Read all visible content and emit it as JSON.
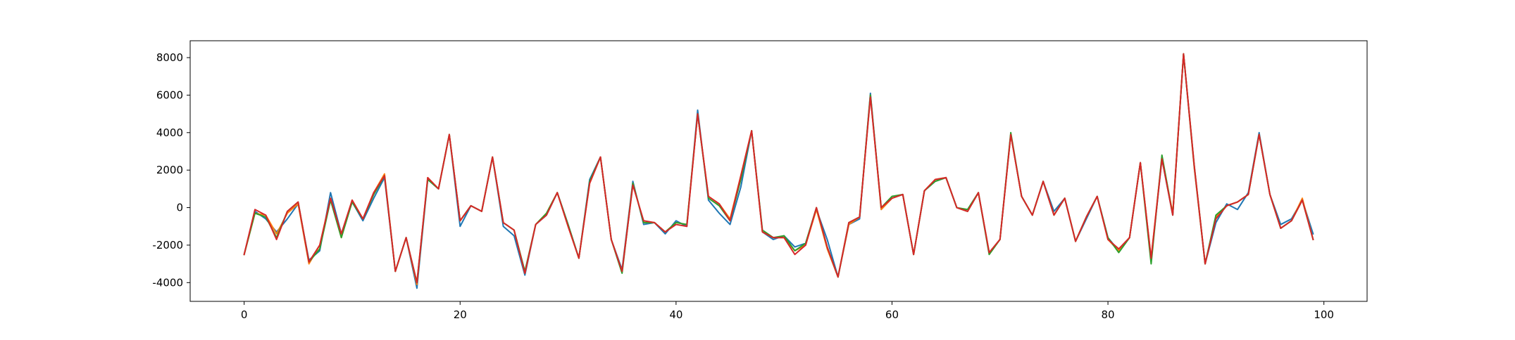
{
  "chart_data": {
    "type": "line",
    "title": "",
    "xlabel": "",
    "ylabel": "",
    "xlim": [
      -5,
      104
    ],
    "ylim": [
      -5000,
      8900
    ],
    "xticks": [
      0,
      20,
      40,
      60,
      80,
      100
    ],
    "yticks": [
      -4000,
      -2000,
      0,
      2000,
      4000,
      6000,
      8000
    ],
    "grid": false,
    "x": [
      0,
      1,
      2,
      3,
      4,
      5,
      6,
      7,
      8,
      9,
      10,
      11,
      12,
      13,
      14,
      15,
      16,
      17,
      18,
      19,
      20,
      21,
      22,
      23,
      24,
      25,
      26,
      27,
      28,
      29,
      30,
      31,
      32,
      33,
      34,
      35,
      36,
      37,
      38,
      39,
      40,
      41,
      42,
      43,
      44,
      45,
      46,
      47,
      48,
      49,
      50,
      51,
      52,
      53,
      54,
      55,
      56,
      57,
      58,
      59,
      60,
      61,
      62,
      63,
      64,
      65,
      66,
      67,
      68,
      69,
      70,
      71,
      72,
      73,
      74,
      75,
      76,
      77,
      78,
      79,
      80,
      81,
      82,
      83,
      84,
      85,
      86,
      87,
      88,
      89,
      90,
      91,
      92,
      93,
      94,
      95,
      96,
      97,
      98,
      99
    ],
    "series": [
      {
        "color": "#1f77b4",
        "values": [
          -2500,
          -200,
          -600,
          -1300,
          -600,
          200,
          -2800,
          -2300,
          800,
          -1400,
          300,
          -700,
          500,
          1600,
          -3400,
          -1600,
          -4300,
          1500,
          1000,
          3900,
          -1000,
          100,
          -200,
          2700,
          -1000,
          -1500,
          -3600,
          -900,
          -400,
          800,
          -900,
          -2700,
          1500,
          2700,
          -1700,
          -3300,
          1400,
          -900,
          -800,
          -1400,
          -700,
          -1000,
          5200,
          400,
          -300,
          -900,
          1100,
          4100,
          -1300,
          -1700,
          -1500,
          -2100,
          -1900,
          -100,
          -1700,
          -3700,
          -900,
          -600,
          6100,
          -100,
          500,
          700,
          -2500,
          900,
          1400,
          1600,
          0,
          -200,
          800,
          -2400,
          -1700,
          3900,
          600,
          -400,
          1400,
          -200,
          500,
          -1800,
          -600,
          600,
          -1600,
          -2300,
          -1600,
          2400,
          -2800,
          2600,
          -400,
          8200,
          2100,
          -3000,
          -800,
          200,
          -100,
          800,
          4000,
          700,
          -900,
          -600,
          400,
          -1400
        ]
      },
      {
        "color": "#ff7f0e",
        "values": [
          -2500,
          -300,
          -400,
          -1400,
          -300,
          200,
          -3000,
          -2000,
          500,
          -1600,
          400,
          -600,
          800,
          1800,
          -3400,
          -1600,
          -4100,
          1600,
          1000,
          3900,
          -700,
          100,
          -200,
          2700,
          -800,
          -1200,
          -3500,
          -900,
          -300,
          800,
          -1000,
          -2700,
          1300,
          2700,
          -1700,
          -3400,
          1300,
          -800,
          -800,
          -1300,
          -800,
          -900,
          5000,
          600,
          200,
          -600,
          1700,
          4100,
          -1300,
          -1600,
          -1600,
          -2300,
          -2000,
          -100,
          -2200,
          -3700,
          -900,
          -500,
          6000,
          -100,
          500,
          700,
          -2500,
          900,
          1500,
          1600,
          0,
          -200,
          800,
          -2400,
          -1700,
          3900,
          600,
          -400,
          1400,
          -400,
          500,
          -1800,
          -500,
          600,
          -1700,
          -2300,
          -1600,
          2400,
          -2700,
          2700,
          -300,
          8200,
          2100,
          -3000,
          -500,
          100,
          300,
          700,
          3900,
          700,
          -1100,
          -700,
          500,
          -1700
        ]
      },
      {
        "color": "#2ca02c",
        "values": [
          -2500,
          -300,
          -500,
          -1600,
          -200,
          300,
          -2900,
          -2200,
          400,
          -1600,
          300,
          -600,
          700,
          1700,
          -3400,
          -1600,
          -4000,
          1500,
          1000,
          3900,
          -700,
          100,
          -200,
          2700,
          -800,
          -1200,
          -3400,
          -900,
          -300,
          800,
          -900,
          -2700,
          1400,
          2700,
          -1700,
          -3500,
          1300,
          -800,
          -800,
          -1300,
          -800,
          -900,
          5000,
          500,
          100,
          -700,
          1500,
          4100,
          -1200,
          -1600,
          -1500,
          -2300,
          -1900,
          0,
          -2100,
          -3700,
          -800,
          -500,
          6000,
          0,
          600,
          700,
          -2500,
          900,
          1400,
          1600,
          0,
          -100,
          800,
          -2500,
          -1700,
          4000,
          600,
          -400,
          1400,
          -400,
          500,
          -1800,
          -500,
          600,
          -1600,
          -2400,
          -1600,
          2400,
          -3000,
          2800,
          -400,
          8200,
          2200,
          -3000,
          -400,
          100,
          300,
          700,
          3900,
          700,
          -1100,
          -700,
          400,
          -1700
        ]
      },
      {
        "color": "#d62728",
        "values": [
          -2500,
          -100,
          -400,
          -1700,
          -200,
          300,
          -2900,
          -2000,
          500,
          -1400,
          400,
          -600,
          800,
          1700,
          -3400,
          -1600,
          -4000,
          1600,
          1000,
          3900,
          -700,
          100,
          -200,
          2700,
          -800,
          -1200,
          -3500,
          -900,
          -400,
          800,
          -1000,
          -2700,
          1300,
          2700,
          -1700,
          -3400,
          1200,
          -700,
          -800,
          -1300,
          -900,
          -1000,
          5000,
          600,
          200,
          -700,
          1700,
          4100,
          -1300,
          -1600,
          -1600,
          -2500,
          -2000,
          0,
          -2100,
          -3700,
          -800,
          -500,
          5900,
          0,
          500,
          700,
          -2500,
          900,
          1500,
          1600,
          0,
          -200,
          800,
          -2400,
          -1700,
          3900,
          600,
          -400,
          1400,
          -400,
          500,
          -1800,
          -500,
          600,
          -1700,
          -2200,
          -1600,
          2400,
          -2700,
          2600,
          -400,
          8200,
          2200,
          -3000,
          -600,
          100,
          300,
          700,
          3900,
          700,
          -1100,
          -700,
          400,
          -1700
        ]
      }
    ]
  }
}
